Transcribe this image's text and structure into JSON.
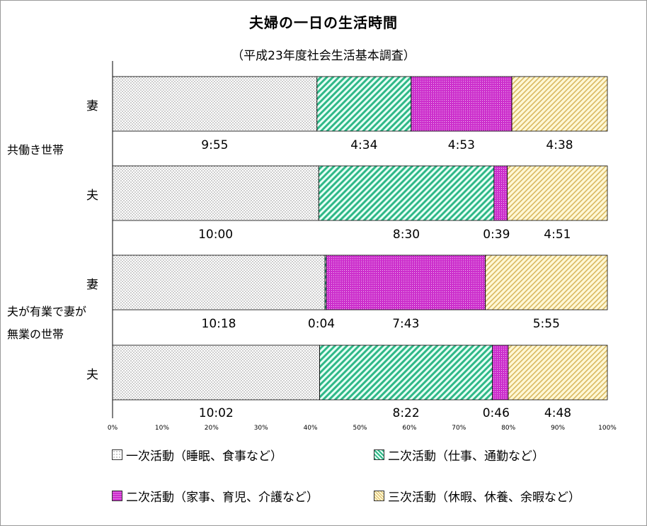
{
  "title": "夫婦の一日の生活時間",
  "subtitle": "（平成23年度社会生活基本調査）",
  "groups": [
    {
      "label_lines": [
        "共働き世帯"
      ],
      "rows": [
        0,
        1
      ]
    },
    {
      "label_lines": [
        "夫が有業で妻が",
        "無業の世帯"
      ],
      "rows": [
        2,
        3
      ]
    }
  ],
  "colors": {
    "primary": "#ffffff",
    "secondary_work": "#4cc8a0",
    "secondary_house": "#cc33cc",
    "tertiary": "#ffe9a8",
    "axis": "#000000"
  },
  "chart_data": {
    "type": "bar",
    "orientation": "horizontal",
    "stacked": "percent",
    "categories": [
      "妻",
      "夫",
      "妻",
      "夫"
    ],
    "series": [
      {
        "name": "一次活動（睡眠、食事など）",
        "values": [
          595,
          600,
          618,
          602
        ],
        "labels": [
          "9:55",
          "10:00",
          "10:18",
          "10:02"
        ],
        "pattern": "dots"
      },
      {
        "name": "二次活動（仕事、通勤など）",
        "values": [
          274,
          510,
          4,
          502
        ],
        "labels": [
          "4:34",
          "8:30",
          "0:04",
          "8:22"
        ],
        "pattern": "diagonal"
      },
      {
        "name": "二次活動（家事、育児、介護など）",
        "values": [
          293,
          39,
          463,
          46
        ],
        "labels": [
          "4:53",
          "0:39",
          "7:43",
          "0:46"
        ],
        "pattern": "grid"
      },
      {
        "name": "三次活動（休暇、休養、余暇など）",
        "values": [
          278,
          291,
          355,
          288
        ],
        "labels": [
          "4:38",
          "4:51",
          "5:55",
          "4:48"
        ],
        "pattern": "diagonal"
      }
    ],
    "x_ticks": [
      "0%",
      "10%",
      "20%",
      "30%",
      "40%",
      "50%",
      "60%",
      "70%",
      "80%",
      "90%",
      "100%"
    ],
    "xlim": [
      0,
      100
    ],
    "grid": false,
    "legend_position": "bottom"
  }
}
